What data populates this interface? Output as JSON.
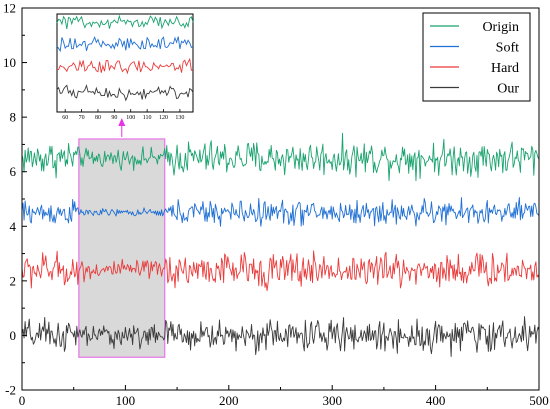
{
  "chart_data": {
    "type": "line",
    "x_range": [
      0,
      500
    ],
    "y_range": [
      -2,
      12
    ],
    "x_ticks": [
      0,
      100,
      200,
      300,
      400,
      500
    ],
    "x_tick_labels": [
      "0",
      "100",
      "200",
      "300",
      "400",
      "500"
    ],
    "y_ticks": [
      -2,
      0,
      2,
      4,
      6,
      8,
      10,
      12
    ],
    "y_tick_labels": [
      "-2",
      "0",
      "2",
      "4",
      "6",
      "8",
      "10",
      "12"
    ],
    "grid": false,
    "legend_position": "top-right",
    "series": [
      {
        "name": "Origin",
        "color": "#1aa36e",
        "offset": 6.5,
        "amplitude": 0.55,
        "quiet_amplitude": 0.3
      },
      {
        "name": "Soft",
        "color": "#1f6fd4",
        "offset": 4.5,
        "amplitude": 0.4,
        "quiet_amplitude": 0.12
      },
      {
        "name": "Hard",
        "color": "#ea3b3b",
        "offset": 2.4,
        "amplitude": 0.55,
        "quiet_amplitude": 0.3
      },
      {
        "name": "Our",
        "color": "#3a3a3a",
        "offset": 0.0,
        "amplitude": 0.5,
        "quiet_amplitude": 0.35
      }
    ],
    "highlight_region": {
      "x": [
        55,
        138
      ],
      "y": [
        -0.8,
        7.2
      ],
      "fill": "#d9d9d9",
      "border": "#e87de8"
    },
    "inset": {
      "x_ticks": [
        60,
        70,
        80,
        90,
        100,
        110,
        120,
        130
      ],
      "x_tick_labels": [
        "60",
        "70",
        "80",
        "90",
        "100",
        "110",
        "120",
        "130"
      ],
      "x_range": [
        55,
        138
      ],
      "arrow_color": "#e633e6"
    }
  }
}
